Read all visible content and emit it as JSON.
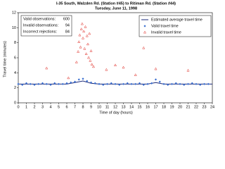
{
  "chart_data": {
    "type": "scatter",
    "title": "I-35 South, Walzden Rd. (Station #45) to Ritiman Rd. (Station #44)",
    "subtitle": "Tuesday, June 11, 1998",
    "x_label": "Time of day (hours)",
    "y_label": "Travel time (minutes)",
    "xlim": [
      0,
      24
    ],
    "xticks": [
      0,
      1,
      2,
      3,
      4,
      5,
      6,
      7,
      8,
      9,
      10,
      11,
      12,
      13,
      14,
      15,
      16,
      17,
      18,
      19,
      20,
      21,
      22,
      23,
      24
    ],
    "ylim": [
      0,
      12
    ],
    "yticks": [
      0,
      2,
      4,
      6,
      8,
      10,
      12
    ],
    "grid": false,
    "legend": "upper right",
    "annotations": [
      {
        "label": "Valid observations:",
        "value": 600
      },
      {
        "label": "Invalid observations:",
        "value": 94
      },
      {
        "label": "Incorrect rejections:",
        "value": 84
      }
    ],
    "series": [
      {
        "name": "Estimated average travel time",
        "color": "#1a2a7a",
        "marker": "line",
        "x": [
          0,
          1,
          2,
          3,
          4,
          5,
          6,
          7,
          8,
          9,
          10,
          11,
          12,
          13,
          14,
          15,
          16,
          17,
          18,
          19,
          20,
          21,
          22,
          23,
          24
        ],
        "values": [
          2.5,
          2.5,
          2.5,
          2.5,
          2.5,
          2.5,
          2.5,
          2.7,
          2.9,
          2.6,
          2.5,
          2.5,
          2.5,
          2.5,
          2.5,
          2.5,
          2.5,
          2.7,
          2.5,
          2.5,
          2.5,
          2.5,
          2.5,
          2.5,
          2.5
        ]
      },
      {
        "name": "Valid travel time",
        "color": "#3a6fd0",
        "marker": "diamond",
        "x": [
          0,
          0.5,
          1,
          1.5,
          2,
          2.5,
          3,
          3.5,
          4,
          4.5,
          5,
          5.5,
          6,
          6.5,
          7,
          7.5,
          8,
          8.5,
          9,
          9.5,
          10,
          10.5,
          11,
          11.5,
          12,
          12.5,
          13,
          13.5,
          14,
          14.5,
          15,
          15.5,
          16,
          16.5,
          17,
          17.5,
          18,
          18.5,
          19,
          19.5,
          20,
          20.5,
          21,
          21.5,
          22,
          22.5,
          23,
          23.5
        ],
        "values": [
          2.5,
          2.4,
          2.6,
          2.5,
          2.4,
          2.5,
          2.6,
          2.5,
          2.4,
          2.6,
          2.5,
          2.5,
          2.6,
          2.7,
          2.8,
          3.1,
          3.2,
          2.9,
          2.7,
          2.6,
          2.5,
          2.4,
          2.5,
          2.6,
          2.5,
          2.4,
          2.5,
          2.6,
          2.5,
          2.5,
          2.6,
          2.4,
          2.5,
          2.6,
          3.1,
          2.8,
          2.5,
          2.4,
          2.5,
          2.6,
          2.5,
          2.4,
          2.5,
          2.6,
          2.5,
          2.4,
          2.5,
          2.5
        ]
      },
      {
        "name": "Invalid travel time",
        "color": "#e0302a",
        "marker": "triangle",
        "x": [
          3.5,
          6.2,
          7.2,
          7.4,
          7.5,
          7.6,
          7.7,
          7.8,
          7.9,
          8.0,
          8.1,
          8.2,
          8.3,
          8.4,
          8.5,
          8.6,
          8.7,
          8.8,
          8.9,
          9.0,
          9.1,
          9.3,
          10.9,
          12.0,
          13.0,
          14.5,
          15.5,
          17.0,
          21.0
        ],
        "values": [
          4.6,
          3.3,
          5.4,
          6.8,
          8.1,
          9.0,
          7.4,
          9.8,
          10.5,
          8.6,
          9.5,
          7.2,
          10.1,
          6.5,
          8.9,
          7.8,
          6.0,
          9.2,
          5.6,
          6.9,
          5.1,
          4.8,
          4.4,
          5.0,
          4.7,
          3.7,
          7.3,
          4.5,
          4.3
        ]
      }
    ]
  }
}
